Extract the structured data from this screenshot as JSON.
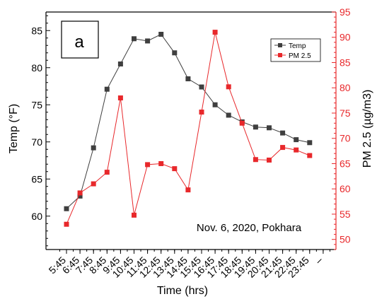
{
  "chart_data": {
    "type": "line",
    "panel_label": "a",
    "annotation": "Nov. 6, 2020, Pokhara",
    "xlabel": "Time (hrs)",
    "ylabel_left": "Temp (°F)",
    "ylabel_right": "PM 2.5 (µg/m3)",
    "categories": [
      "5:45",
      "6:45",
      "7:45",
      "8:45",
      "9:45",
      "10:45",
      "11:45",
      "12:45",
      "13:45",
      "14:45",
      "15:45",
      "16:45",
      "17:45",
      "18:45",
      "19:45",
      "20:45",
      "21:45",
      "22:45",
      "23:45"
    ],
    "extra_tick_label": "–",
    "ylim_left": [
      55.5,
      87.5
    ],
    "yticks_left": [
      60,
      65,
      70,
      75,
      80,
      85
    ],
    "ylim_right": [
      48,
      95
    ],
    "yticks_right": [
      50,
      55,
      60,
      65,
      70,
      75,
      80,
      85,
      90,
      95
    ],
    "legend_position": "top-right",
    "series": [
      {
        "name": "Temp",
        "axis": "left",
        "color": "#3f3f3f",
        "values": [
          61.0,
          62.7,
          69.2,
          77.1,
          80.5,
          83.9,
          83.6,
          84.5,
          82.0,
          78.5,
          77.4,
          75.0,
          73.6,
          72.7,
          72.0,
          71.9,
          71.2,
          70.3,
          69.9
        ]
      },
      {
        "name": "PM 2.5",
        "axis": "right",
        "color": "#e8282b",
        "values": [
          53.0,
          59.2,
          61.0,
          63.3,
          78.0,
          54.8,
          64.8,
          65.0,
          64.0,
          59.8,
          75.2,
          91.0,
          80.2,
          73.0,
          65.8,
          65.7,
          68.2,
          67.7,
          66.6
        ]
      }
    ]
  }
}
